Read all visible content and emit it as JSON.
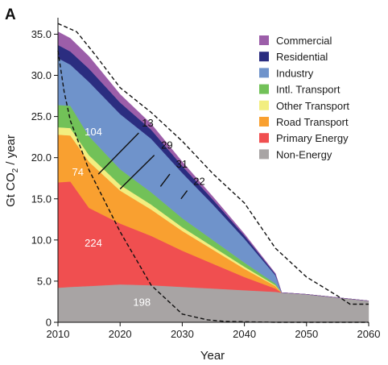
{
  "panel_label": "A",
  "chart_data": {
    "type": "area",
    "stacked": true,
    "xlabel": "Year",
    "ylabel_main": "Gt CO",
    "ylabel_sub": "2",
    "ylabel_tail": " / year",
    "xlim": [
      2010,
      2060
    ],
    "ylim": [
      0,
      37
    ],
    "x_ticks": [
      2010,
      2020,
      2030,
      2040,
      2050,
      2060
    ],
    "x_tick_labels": [
      "2010",
      "2020",
      "2030",
      "2040",
      "2050",
      "2060"
    ],
    "y_ticks": [
      0,
      5,
      10,
      15,
      20,
      25,
      30,
      35
    ],
    "y_tick_labels": [
      "0",
      "5.0",
      "10.0",
      "15.0",
      "20.0",
      "25.0",
      "30.0",
      "35.0"
    ],
    "x": [
      2010,
      2012,
      2015,
      2020,
      2025,
      2030,
      2035,
      2040,
      2045,
      2046,
      2050,
      2055,
      2060
    ],
    "series": [
      {
        "name": "Non-Energy",
        "color": "#a8a4a4",
        "values": [
          4.2,
          4.3,
          4.4,
          4.6,
          4.5,
          4.3,
          4.1,
          3.9,
          3.7,
          3.6,
          3.4,
          3.0,
          2.6
        ]
      },
      {
        "name": "Primary Energy",
        "color": "#f04f50",
        "values": [
          12.8,
          12.8,
          9.5,
          7.4,
          6.0,
          4.4,
          3.0,
          1.6,
          0.4,
          0.0,
          0.0,
          0.0,
          0.0
        ]
      },
      {
        "name": "Road Transport",
        "color": "#f9a030",
        "values": [
          5.8,
          5.6,
          5.6,
          4.0,
          3.2,
          2.4,
          1.7,
          1.0,
          0.3,
          0.0,
          0.0,
          0.0,
          0.0
        ]
      },
      {
        "name": "Other Transport",
        "color": "#f2ee80",
        "values": [
          0.9,
          0.9,
          0.8,
          0.7,
          0.6,
          0.45,
          0.35,
          0.25,
          0.1,
          0.0,
          0.0,
          0.0,
          0.0
        ]
      },
      {
        "name": "Intl. Transport",
        "color": "#72c158",
        "values": [
          2.7,
          2.7,
          2.3,
          1.9,
          1.5,
          1.1,
          0.8,
          0.5,
          0.2,
          0.0,
          0.0,
          0.0,
          0.0
        ]
      },
      {
        "name": "Industry",
        "color": "#6f93cb",
        "values": [
          5.7,
          5.0,
          6.6,
          6.7,
          6.5,
          5.5,
          4.3,
          2.9,
          1.0,
          0.0,
          0.0,
          0.0,
          0.0
        ]
      },
      {
        "name": "Residential",
        "color": "#2b2d80",
        "values": [
          1.6,
          1.6,
          1.6,
          1.4,
          1.1,
          0.85,
          0.6,
          0.4,
          0.15,
          0.0,
          0.0,
          0.0,
          0.0
        ]
      },
      {
        "name": "Commercial",
        "color": "#9c5ea9",
        "values": [
          1.6,
          1.6,
          1.5,
          1.0,
          0.7,
          0.5,
          0.35,
          0.2,
          0.08,
          0.0,
          0.0,
          0.0,
          0.0
        ]
      }
    ],
    "dashed_curves": [
      {
        "x": [
          2010,
          2013,
          2016,
          2020,
          2025,
          2030,
          2035,
          2040,
          2045,
          2050,
          2055,
          2057,
          2060
        ],
        "y": [
          36.3,
          35.3,
          32.5,
          28.5,
          25.5,
          22.0,
          18.0,
          14.5,
          9.0,
          5.5,
          3.2,
          2.2,
          2.2
        ]
      },
      {
        "x": [
          2010,
          2011,
          2012,
          2015,
          2020,
          2025,
          2030,
          2034,
          2037,
          2045,
          2050,
          2055,
          2060
        ],
        "y": [
          33.0,
          28.0,
          24.5,
          18.5,
          11.0,
          4.5,
          1.0,
          0.3,
          0.1,
          0.0,
          0.0,
          0.0,
          0.0
        ]
      }
    ],
    "area_labels": [
      {
        "text": "104",
        "x": 2015.7,
        "y": 22.7,
        "color": "#ffffff"
      },
      {
        "text": "74",
        "x": 2013.2,
        "y": 17.8,
        "color": "#ffffff"
      },
      {
        "text": "224",
        "x": 2015.7,
        "y": 9.2,
        "color": "#ffffff"
      },
      {
        "text": "198",
        "x": 2023.5,
        "y": 2.0,
        "color": "#ffffff"
      }
    ],
    "callouts": [
      {
        "text": "13",
        "label_x": 2023.5,
        "label_y": 23.8,
        "from": [
          2023.0,
          23.0
        ],
        "to": [
          2016.5,
          18.0
        ]
      },
      {
        "text": "29",
        "label_x": 2026.6,
        "label_y": 21.1,
        "from": [
          2025.5,
          20.3
        ],
        "to": [
          2020.0,
          16.2
        ]
      },
      {
        "text": "31",
        "label_x": 2029.0,
        "label_y": 18.8,
        "from": [
          2028.0,
          18.0
        ],
        "to": [
          2026.5,
          16.5
        ]
      },
      {
        "text": "22",
        "label_x": 2031.8,
        "label_y": 16.7,
        "from": [
          2030.8,
          16.0
        ],
        "to": [
          2029.8,
          15.0
        ]
      }
    ],
    "legend": {
      "placement": "top-right",
      "entries": [
        {
          "label": "Commercial",
          "color": "#9c5ea9"
        },
        {
          "label": "Residential",
          "color": "#2b2d80"
        },
        {
          "label": "Industry",
          "color": "#6f93cb"
        },
        {
          "label": "Intl. Transport",
          "color": "#72c158"
        },
        {
          "label": "Other Transport",
          "color": "#f2ee80"
        },
        {
          "label": "Road Transport",
          "color": "#f9a030"
        },
        {
          "label": "Primary Energy",
          "color": "#f04f50"
        },
        {
          "label": "Non-Energy",
          "color": "#a8a4a4"
        }
      ]
    }
  }
}
